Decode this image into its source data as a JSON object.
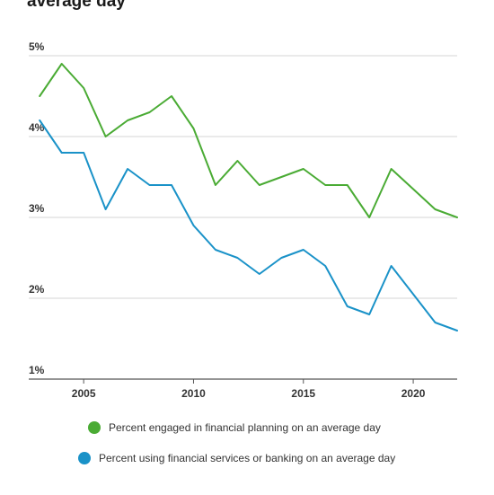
{
  "chart_data": {
    "type": "line",
    "title": "average day",
    "xlabel": "",
    "ylabel": "",
    "x": [
      2003,
      2004,
      2005,
      2006,
      2007,
      2008,
      2009,
      2010,
      2011,
      2012,
      2013,
      2014,
      2015,
      2016,
      2017,
      2018,
      2019,
      2020,
      2021,
      2022
    ],
    "xticks": [
      2005,
      2010,
      2015,
      2020
    ],
    "xtick_labels": [
      "2005",
      "2010",
      "2015",
      "2020"
    ],
    "xlim": [
      2002.5,
      2022
    ],
    "yticks": [
      1,
      2,
      3,
      4,
      5
    ],
    "ytick_labels": [
      "1%",
      "2%",
      "3%",
      "4%",
      "5%"
    ],
    "ylim": [
      1,
      5
    ],
    "grid": true,
    "legend_position": "bottom",
    "series": [
      {
        "name": "Percent engaged in financial planning on an average day",
        "color": "#4aab34",
        "values": [
          4.5,
          4.9,
          4.6,
          4.0,
          4.2,
          4.3,
          4.5,
          4.1,
          3.4,
          3.7,
          3.4,
          3.5,
          3.6,
          3.4,
          3.4,
          3.0,
          3.6,
          3.35,
          3.1,
          3.0
        ]
      },
      {
        "name": "Percent using financial services or banking on an average day",
        "color": "#1a92c8",
        "values": [
          4.2,
          3.8,
          3.8,
          3.1,
          3.6,
          3.4,
          3.4,
          2.9,
          2.6,
          2.5,
          2.3,
          2.5,
          2.6,
          2.4,
          1.9,
          1.8,
          2.4,
          2.05,
          1.7,
          1.6
        ]
      }
    ]
  }
}
